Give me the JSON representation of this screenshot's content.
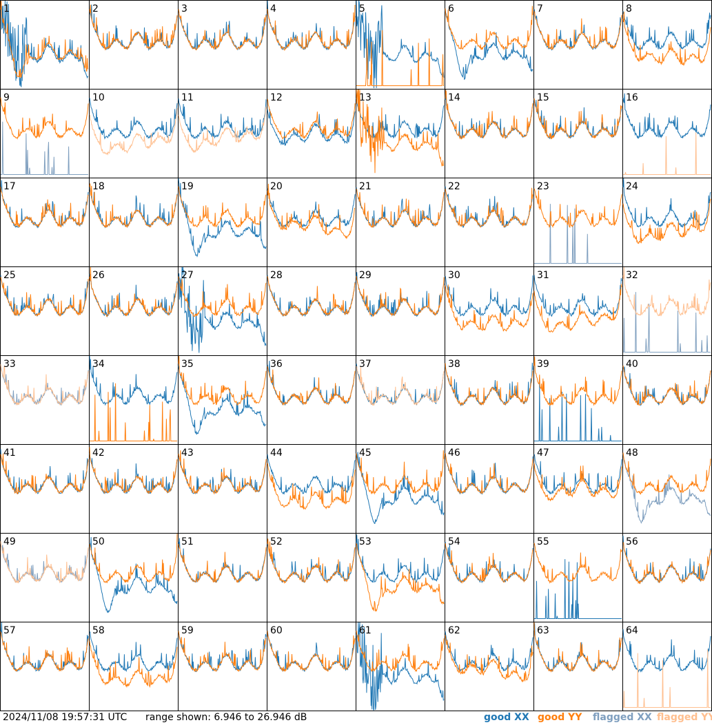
{
  "footer": {
    "timestamp": "2024/11/08 19:57:31 UTC",
    "range_text": "range shown: 6.946 to 26.946 dB"
  },
  "legend": {
    "good_xx": "good XX",
    "good_yy": "good YY",
    "flagged_xx": "flagged XX",
    "flagged_yy": "flagged YY"
  },
  "colors": {
    "good_xx": "#1f77b4",
    "good_yy": "#ff7f0e",
    "flagged_xx": "#7f9fbf",
    "flagged_yy": "#ffbf8f",
    "grid_border": "#000000"
  },
  "chart_data": {
    "type": "line",
    "layout": "8x8 small multiples, one spectrum panel per tile",
    "y_range_db": [
      6.946,
      26.946
    ],
    "tile_labels": [
      "1",
      "2",
      "3",
      "4",
      "5",
      "6",
      "7",
      "8",
      "9",
      "10",
      "11",
      "12",
      "13",
      "14",
      "15",
      "16",
      "17",
      "18",
      "19",
      "20",
      "21",
      "22",
      "23",
      "24",
      "25",
      "26",
      "27",
      "28",
      "29",
      "30",
      "31",
      "32",
      "33",
      "34",
      "35",
      "36",
      "37",
      "38",
      "39",
      "40",
      "41",
      "42",
      "43",
      "44",
      "45",
      "46",
      "47",
      "48",
      "49",
      "50",
      "51",
      "52",
      "53",
      "54",
      "55",
      "56",
      "57",
      "58",
      "59",
      "60",
      "61",
      "62",
      "63",
      "64"
    ],
    "tiles": [
      {
        "id": 1,
        "xx": "bad",
        "yy": "dip",
        "xx_flag": false,
        "yy_flag": false
      },
      {
        "id": 2,
        "xx": "normal",
        "yy": "normal",
        "xx_flag": false,
        "yy_flag": false
      },
      {
        "id": 3,
        "xx": "normal",
        "yy": "normal",
        "xx_flag": false,
        "yy_flag": false
      },
      {
        "id": 4,
        "xx": "normal",
        "yy": "normal",
        "xx_flag": false,
        "yy_flag": false
      },
      {
        "id": 5,
        "xx": "bad",
        "yy": "spikes",
        "xx_flag": false,
        "yy_flag": false
      },
      {
        "id": 6,
        "xx": "dip",
        "yy": "normal",
        "xx_flag": false,
        "yy_flag": false
      },
      {
        "id": 7,
        "xx": "normal",
        "yy": "normal",
        "xx_flag": false,
        "yy_flag": false
      },
      {
        "id": 8,
        "xx": "normal",
        "yy": "low",
        "xx_flag": false,
        "yy_flag": false
      },
      {
        "id": 9,
        "xx": "spikes",
        "yy": "normal",
        "xx_flag": true,
        "yy_flag": false
      },
      {
        "id": 10,
        "xx": "normal",
        "yy": "low",
        "xx_flag": false,
        "yy_flag": true
      },
      {
        "id": 11,
        "xx": "normal",
        "yy": "low",
        "xx_flag": false,
        "yy_flag": true
      },
      {
        "id": 12,
        "xx": "low",
        "yy": "normal",
        "xx_flag": false,
        "yy_flag": false
      },
      {
        "id": 13,
        "xx": "normal",
        "yy": "bad",
        "xx_flag": false,
        "yy_flag": false
      },
      {
        "id": 14,
        "xx": "normal",
        "yy": "normal",
        "xx_flag": false,
        "yy_flag": false
      },
      {
        "id": 15,
        "xx": "normal",
        "yy": "normal",
        "xx_flag": false,
        "yy_flag": false
      },
      {
        "id": 16,
        "xx": "normal",
        "yy": "spikes",
        "xx_flag": false,
        "yy_flag": true
      },
      {
        "id": 17,
        "xx": "normal",
        "yy": "normal",
        "xx_flag": false,
        "yy_flag": false
      },
      {
        "id": 18,
        "xx": "normal",
        "yy": "normal",
        "xx_flag": false,
        "yy_flag": false
      },
      {
        "id": 19,
        "xx": "dip",
        "yy": "normal",
        "xx_flag": false,
        "yy_flag": false
      },
      {
        "id": 20,
        "xx": "normal",
        "yy": "low",
        "xx_flag": false,
        "yy_flag": false
      },
      {
        "id": 21,
        "xx": "normal",
        "yy": "normal",
        "xx_flag": false,
        "yy_flag": false
      },
      {
        "id": 22,
        "xx": "normal",
        "yy": "normal",
        "xx_flag": false,
        "yy_flag": false
      },
      {
        "id": 23,
        "xx": "spikes",
        "yy": "normal",
        "xx_flag": true,
        "yy_flag": false
      },
      {
        "id": 24,
        "xx": "normal",
        "yy": "low",
        "xx_flag": false,
        "yy_flag": false
      },
      {
        "id": 25,
        "xx": "normal",
        "yy": "normal",
        "xx_flag": false,
        "yy_flag": false
      },
      {
        "id": 26,
        "xx": "normal",
        "yy": "normal",
        "xx_flag": false,
        "yy_flag": false
      },
      {
        "id": 27,
        "xx": "bad",
        "yy": "normal",
        "xx_flag": false,
        "yy_flag": false
      },
      {
        "id": 28,
        "xx": "normal",
        "yy": "normal",
        "xx_flag": false,
        "yy_flag": false
      },
      {
        "id": 29,
        "xx": "normal",
        "yy": "normal",
        "xx_flag": false,
        "yy_flag": false
      },
      {
        "id": 30,
        "xx": "normal",
        "yy": "low",
        "xx_flag": false,
        "yy_flag": false
      },
      {
        "id": 31,
        "xx": "normal",
        "yy": "low",
        "xx_flag": false,
        "yy_flag": false
      },
      {
        "id": 32,
        "xx": "spikes",
        "yy": "normal",
        "xx_flag": true,
        "yy_flag": true
      },
      {
        "id": 33,
        "xx": "normal",
        "yy": "normal",
        "xx_flag": true,
        "yy_flag": true
      },
      {
        "id": 34,
        "xx": "normal",
        "yy": "spikes",
        "xx_flag": false,
        "yy_flag": false
      },
      {
        "id": 35,
        "xx": "dip",
        "yy": "normal",
        "xx_flag": false,
        "yy_flag": false
      },
      {
        "id": 36,
        "xx": "normal",
        "yy": "normal",
        "xx_flag": false,
        "yy_flag": false
      },
      {
        "id": 37,
        "xx": "normal",
        "yy": "normal",
        "xx_flag": false,
        "yy_flag": true
      },
      {
        "id": 38,
        "xx": "normal",
        "yy": "normal",
        "xx_flag": false,
        "yy_flag": false
      },
      {
        "id": 39,
        "xx": "spikes",
        "yy": "normal",
        "xx_flag": false,
        "yy_flag": false
      },
      {
        "id": 40,
        "xx": "normal",
        "yy": "normal",
        "xx_flag": false,
        "yy_flag": false
      },
      {
        "id": 41,
        "xx": "normal",
        "yy": "normal",
        "xx_flag": false,
        "yy_flag": false
      },
      {
        "id": 42,
        "xx": "normal",
        "yy": "normal",
        "xx_flag": false,
        "yy_flag": false
      },
      {
        "id": 43,
        "xx": "normal",
        "yy": "normal",
        "xx_flag": false,
        "yy_flag": false
      },
      {
        "id": 44,
        "xx": "normal",
        "yy": "low",
        "xx_flag": false,
        "yy_flag": false
      },
      {
        "id": 45,
        "xx": "dip",
        "yy": "normal",
        "xx_flag": false,
        "yy_flag": false
      },
      {
        "id": 46,
        "xx": "normal",
        "yy": "normal",
        "xx_flag": false,
        "yy_flag": false
      },
      {
        "id": 47,
        "xx": "normal",
        "yy": "low",
        "xx_flag": false,
        "yy_flag": false
      },
      {
        "id": 48,
        "xx": "dip",
        "yy": "normal",
        "xx_flag": true,
        "yy_flag": false
      },
      {
        "id": 49,
        "xx": "normal",
        "yy": "normal",
        "xx_flag": true,
        "yy_flag": true
      },
      {
        "id": 50,
        "xx": "dip",
        "yy": "normal",
        "xx_flag": false,
        "yy_flag": false
      },
      {
        "id": 51,
        "xx": "normal",
        "yy": "normal",
        "xx_flag": false,
        "yy_flag": false
      },
      {
        "id": 52,
        "xx": "normal",
        "yy": "normal",
        "xx_flag": false,
        "yy_flag": false
      },
      {
        "id": 53,
        "xx": "normal",
        "yy": "dip",
        "xx_flag": false,
        "yy_flag": false
      },
      {
        "id": 54,
        "xx": "normal",
        "yy": "normal",
        "xx_flag": false,
        "yy_flag": false
      },
      {
        "id": 55,
        "xx": "spikes",
        "yy": "normal",
        "xx_flag": false,
        "yy_flag": false
      },
      {
        "id": 56,
        "xx": "normal",
        "yy": "normal",
        "xx_flag": false,
        "yy_flag": false
      },
      {
        "id": 57,
        "xx": "normal",
        "yy": "normal",
        "xx_flag": false,
        "yy_flag": false
      },
      {
        "id": 58,
        "xx": "normal",
        "yy": "low",
        "xx_flag": false,
        "yy_flag": false
      },
      {
        "id": 59,
        "xx": "normal",
        "yy": "normal",
        "xx_flag": false,
        "yy_flag": false
      },
      {
        "id": 60,
        "xx": "normal",
        "yy": "normal",
        "xx_flag": false,
        "yy_flag": false
      },
      {
        "id": 61,
        "xx": "bad",
        "yy": "normal",
        "xx_flag": false,
        "yy_flag": false
      },
      {
        "id": 62,
        "xx": "normal",
        "yy": "low",
        "xx_flag": false,
        "yy_flag": false
      },
      {
        "id": 63,
        "xx": "normal",
        "yy": "normal",
        "xx_flag": false,
        "yy_flag": false
      },
      {
        "id": 64,
        "xx": "normal",
        "yy": "spikes",
        "xx_flag": false,
        "yy_flag": true
      }
    ]
  }
}
